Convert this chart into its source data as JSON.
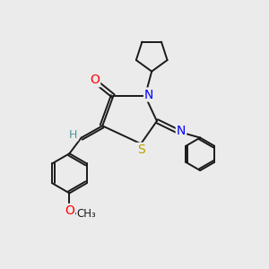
{
  "bg_color": "#ebebeb",
  "bond_color": "#1a1a1a",
  "atom_colors": {
    "O": "#ff0000",
    "N": "#0000ff",
    "S": "#b8a000",
    "H": "#4a9898",
    "C": "#1a1a1a"
  },
  "figsize": [
    3.0,
    3.0
  ],
  "dpi": 100
}
